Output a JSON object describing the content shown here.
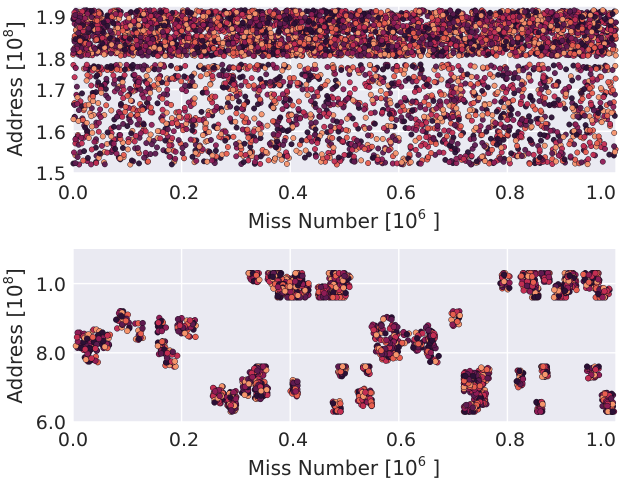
{
  "chart_data": [
    {
      "type": "scatter",
      "xlabel": "Miss Number [10",
      "xlabel_exp": "6",
      "xlabel_suffix": "]",
      "ylabel": "Address [10",
      "ylabel_exp": "8",
      "ylabel_suffix": "]",
      "xlim": [
        0.0,
        1.0
      ],
      "ylim": [
        1.5,
        1.9
      ],
      "xticks": [
        "0.0",
        "0.2",
        "0.4",
        "0.6",
        "0.8",
        "1.0"
      ],
      "yticks": [
        "1.5",
        "1.6",
        "1.7",
        "1.8",
        "1.9"
      ],
      "grid": true,
      "background": "#eaeaf2",
      "colormap": [
        "#2b1035",
        "#5e1a4f",
        "#8f1c55",
        "#c42e52",
        "#e85e4e",
        "#f6956b"
      ],
      "address_bands": [
        {
          "from": 1.52,
          "to": 1.74,
          "density": "dense"
        },
        {
          "from": 1.745,
          "to": 1.76,
          "density": "medium"
        },
        {
          "from": 1.78,
          "to": 1.83,
          "density": "dense"
        },
        {
          "from": 1.835,
          "to": 1.89,
          "density": "very dense"
        }
      ]
    },
    {
      "type": "scatter",
      "xlabel": "Miss Number [10",
      "xlabel_exp": "6",
      "xlabel_suffix": "]",
      "ylabel": "Address [10",
      "ylabel_exp": "8",
      "ylabel_suffix": "]",
      "xlim": [
        0.0,
        1.0
      ],
      "ylim": [
        6.0,
        11.0
      ],
      "xticks": [
        "0.0",
        "0.2",
        "0.4",
        "0.6",
        "0.8",
        "1.0"
      ],
      "yticks": [
        "6.0",
        "8.0",
        "1.0"
      ],
      "ytick_values": [
        6.0,
        8.0,
        10.0
      ],
      "grid": true,
      "background": "#eaeaf2",
      "colormap": [
        "#2b1035",
        "#5e1a4f",
        "#8f1c55",
        "#c42e52",
        "#e85e4e",
        "#f6956b"
      ],
      "phases": [
        {
          "x": [
            0.0,
            0.25
          ],
          "y": [
            7.6,
            9.2
          ],
          "density": "medium"
        },
        {
          "x": [
            0.25,
            0.55
          ],
          "y": [
            6.3,
            7.6
          ],
          "density": "dense"
        },
        {
          "x": [
            0.25,
            0.55
          ],
          "y": [
            9.6,
            10.3
          ],
          "density": "dense"
        },
        {
          "x": [
            0.55,
            0.72
          ],
          "y": [
            7.6,
            9.2
          ],
          "density": "medium"
        },
        {
          "x": [
            0.72,
            1.0
          ],
          "y": [
            6.3,
            7.6
          ],
          "density": "dense"
        },
        {
          "x": [
            0.72,
            1.0
          ],
          "y": [
            9.6,
            10.3
          ],
          "density": "dense"
        }
      ]
    }
  ]
}
